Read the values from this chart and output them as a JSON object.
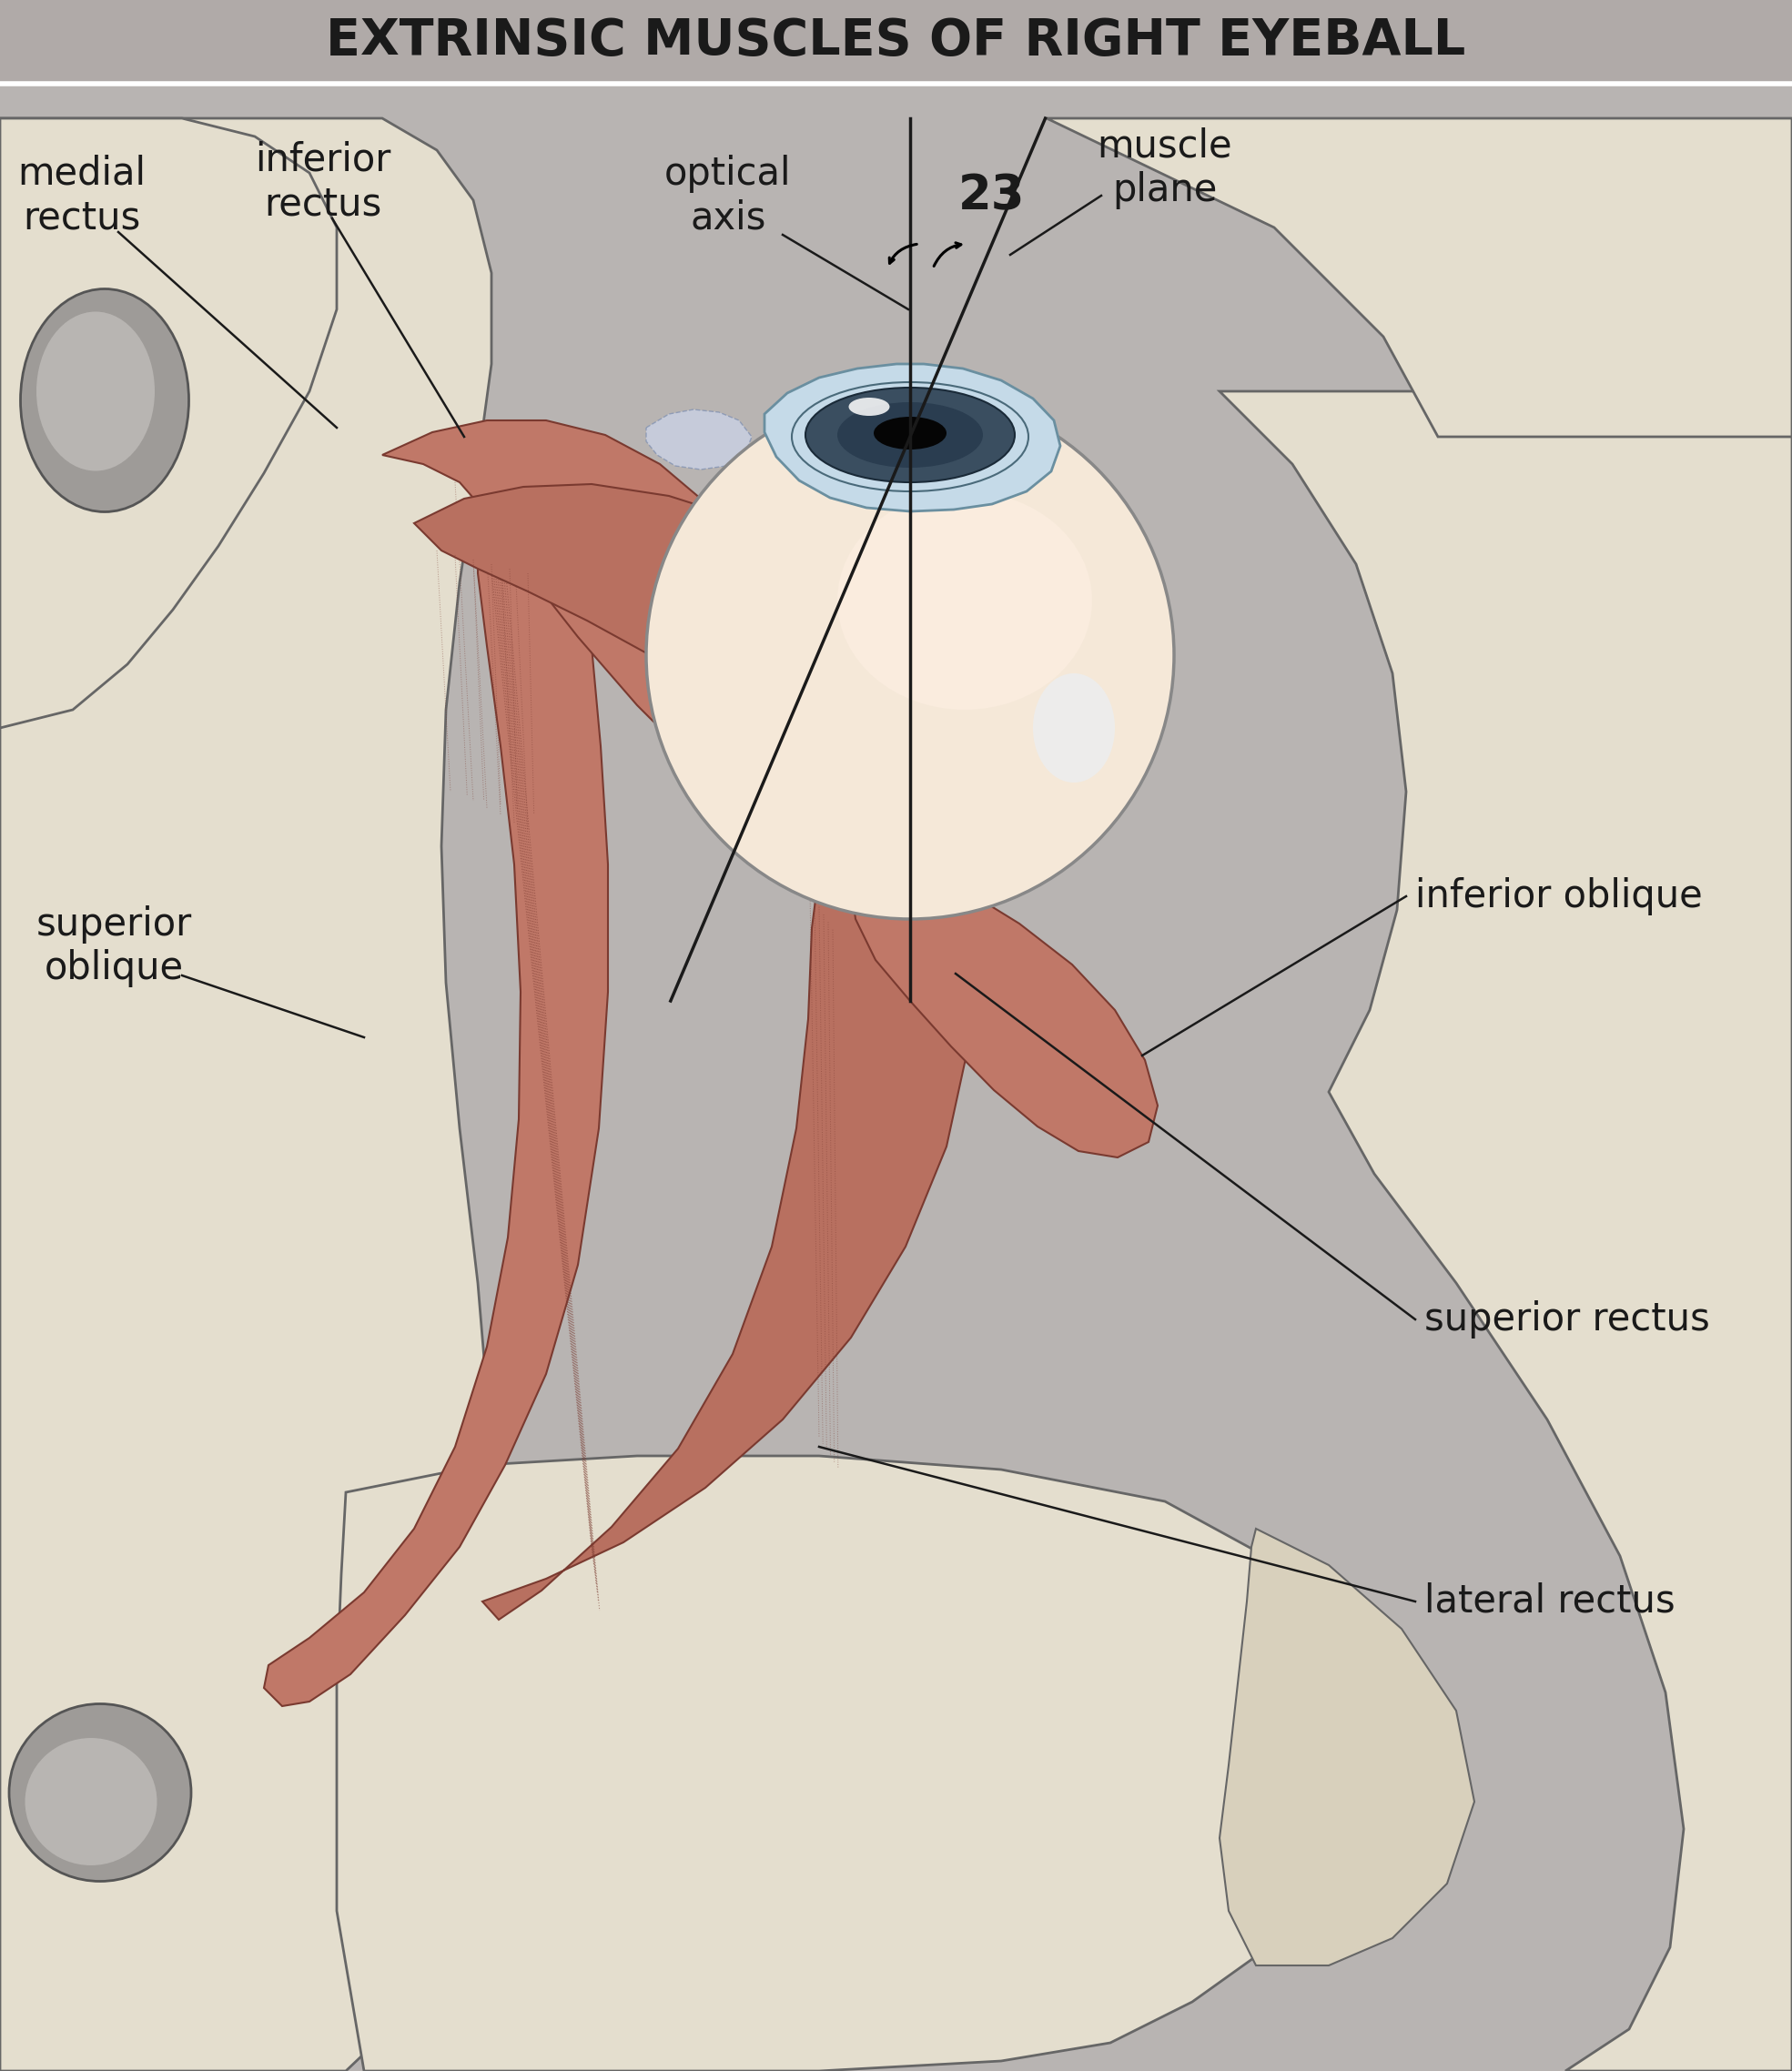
{
  "title": "EXTRINSIC MUSCLES OF RIGHT EYEBALL",
  "title_bg": "#b0aaa8",
  "main_bg": "#b8b4b2",
  "bone_color": "#e4dece",
  "bone_outline": "#666666",
  "muscle_color": "#c07868",
  "muscle_dark": "#7a3a30",
  "muscle_light": "#d49080",
  "eyeball_peach": "#f5e8d8",
  "cornea_blue": "#c8dde8",
  "cornea_dark": "#7a9aaa",
  "iris_color": "#4a5a6a",
  "pupil_color": "#0a0a0a",
  "gray_structure": "#a8a5a2",
  "line_color": "#1a1a1a",
  "text_color": "#1a1a1a",
  "label_medial_rectus": "medial\nrectus",
  "label_inferior_rectus": "inferior\nrectus",
  "label_optical_axis": "optical\naxis",
  "label_23": "23",
  "label_muscle_plane": "muscle\nplane",
  "label_superior_oblique": "superior\noblique",
  "label_inferior_oblique": "inferior oblique",
  "label_superior_rectus": "superior rectus",
  "label_lateral_rectus": "lateral rectus",
  "fig_width": 19.69,
  "fig_height": 22.76
}
